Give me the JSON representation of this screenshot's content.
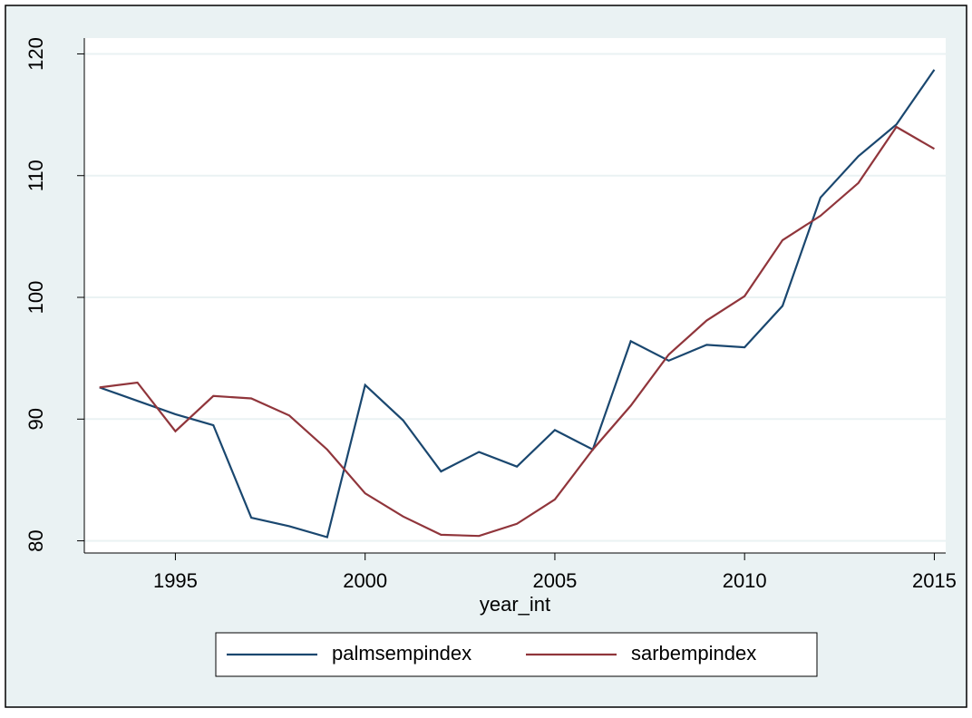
{
  "chart_data": {
    "type": "line",
    "x_label": "year_int",
    "x": [
      1993,
      1994,
      1995,
      1996,
      1997,
      1998,
      1999,
      2000,
      2001,
      2002,
      2003,
      2004,
      2005,
      2006,
      2007,
      2008,
      2009,
      2010,
      2011,
      2012,
      2013,
      2014,
      2015
    ],
    "series": [
      {
        "name": "palmsempindex",
        "color": "#1a476f",
        "values": [
          92.6,
          91.5,
          90.4,
          89.5,
          81.9,
          81.2,
          80.3,
          92.8,
          89.9,
          85.7,
          87.3,
          86.1,
          89.1,
          87.5,
          96.4,
          94.8,
          96.1,
          95.9,
          99.3,
          108.2,
          111.6,
          114.2,
          118.7
        ]
      },
      {
        "name": "sarbempindex",
        "color": "#90353b",
        "values": [
          92.6,
          93.0,
          89.0,
          91.9,
          91.7,
          90.3,
          87.5,
          83.9,
          82.0,
          80.5,
          80.4,
          81.4,
          83.4,
          87.5,
          91.1,
          95.3,
          98.1,
          100.1,
          104.7,
          106.7,
          109.4,
          114.0,
          112.2
        ]
      }
    ],
    "xlim": [
      1992.6,
      2015.3
    ],
    "xticks": [
      1995,
      2000,
      2005,
      2010,
      2015
    ],
    "ylim": [
      79,
      121.3
    ],
    "yticks": [
      80,
      90,
      100,
      110,
      120
    ],
    "grid": true,
    "legend": "bottom"
  }
}
